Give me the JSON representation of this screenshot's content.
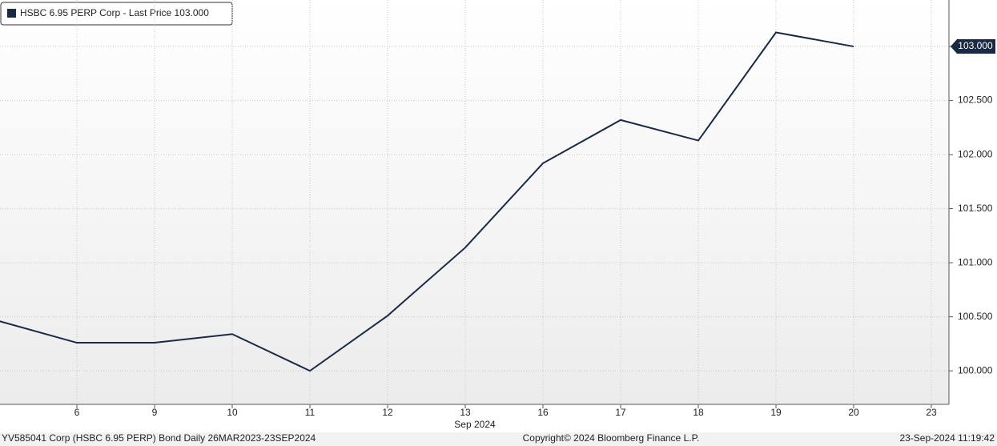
{
  "chart_data": {
    "type": "line",
    "categories": [
      null,
      "6",
      "9",
      "10",
      "11",
      "12",
      "13",
      "16",
      "17",
      "18",
      "19",
      "20",
      "23"
    ],
    "x_label": "Sep 2024",
    "series": [
      {
        "name": "HSBC 6.95 PERP Corp - Last Price 103.000",
        "color": "#1b2a44",
        "values": [
          100.46,
          100.26,
          100.26,
          100.34,
          100.0,
          100.51,
          101.14,
          101.92,
          102.32,
          102.13,
          103.13,
          103.0,
          null
        ],
        "value_labels": [
          null,
          null,
          null,
          null,
          null,
          null,
          null,
          null,
          null,
          null,
          null,
          "103.000",
          null
        ]
      }
    ],
    "ylim": [
      99.69,
      103.43
    ],
    "yticks": [
      {
        "value": 100,
        "label": "100.000"
      },
      {
        "value": 100.5,
        "label": "100.500"
      },
      {
        "value": 101,
        "label": "101.000"
      },
      {
        "value": 101.5,
        "label": "101.500"
      },
      {
        "value": 102,
        "label": "102.000"
      },
      {
        "value": 102.5,
        "label": "102.500"
      },
      {
        "value": 103,
        "label": "103.000"
      }
    ],
    "grid": true,
    "footer": {
      "left": "YV585041 Corp (HSBC 6.95 PERP) Bond  Daily 26MAR2023-23SEP2024",
      "center": "Copyright© 2024 Bloomberg Finance L.P.",
      "right": "23-Sep-2024 11:19:42"
    }
  }
}
